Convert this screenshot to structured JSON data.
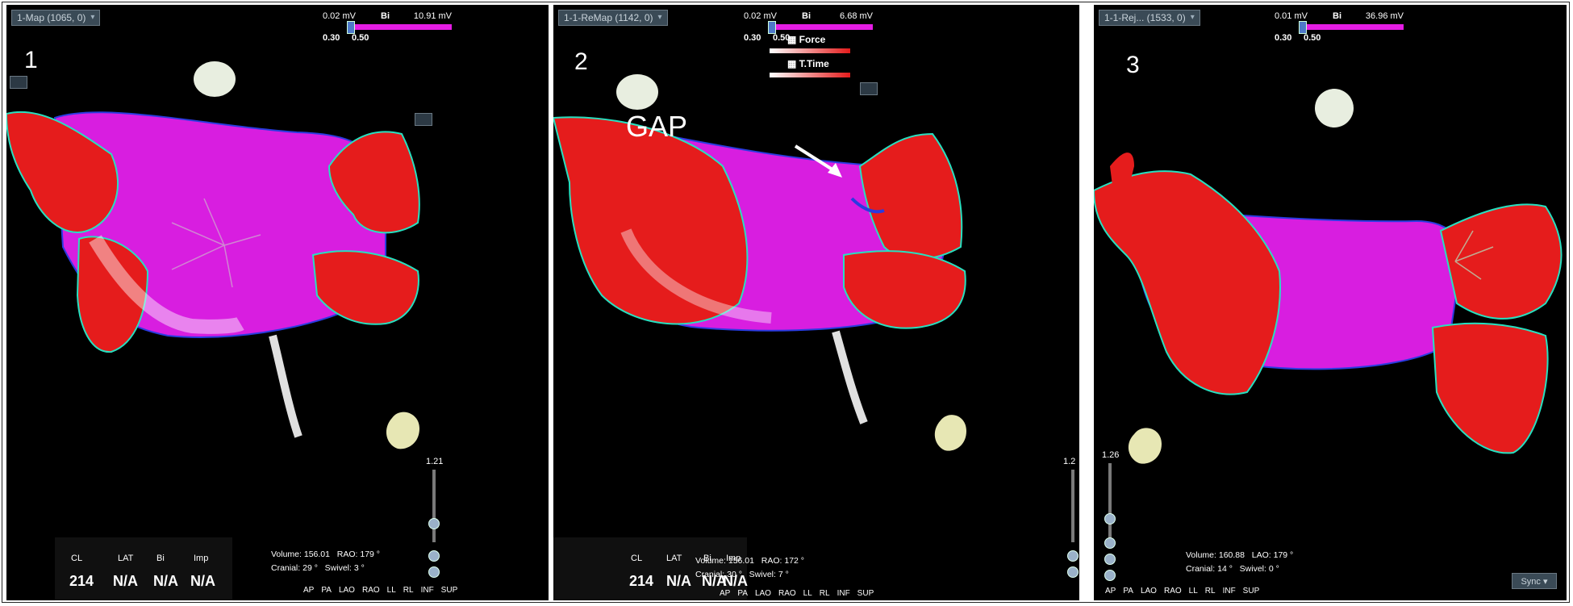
{
  "panels": [
    {
      "number": "1",
      "title": "1-Map (1065, 0)",
      "scale": {
        "min": "0.02 mV",
        "mode": "Bi",
        "max": "10.91 mV",
        "low": "0.30",
        "high": "0.50"
      },
      "info": {
        "headers": [
          "CL",
          "LAT",
          "Bi",
          "Imp"
        ],
        "values": [
          "214",
          "N/A",
          "N/A",
          "N/A"
        ]
      },
      "readout": {
        "volume_label": "Volume:",
        "volume": "156.01",
        "angle_label": "RAO:",
        "angle": "179 °",
        "cranial_label": "Cranial:",
        "cranial": "29 °",
        "swivel_label": "Swivel:",
        "swivel": "3 °"
      },
      "views": [
        "AP",
        "PA",
        "LAO",
        "RAO",
        "LL",
        "RL",
        "INF",
        "SUP"
      ],
      "zoom": "1.21"
    },
    {
      "number": "2",
      "title": "1-1-ReMap (1142, 0)",
      "scale": {
        "min": "0.02 mV",
        "mode": "Bi",
        "max": "6.68 mV",
        "low": "0.30",
        "high": "0.50"
      },
      "legend": {
        "force": "Force",
        "ttime": "T.Time"
      },
      "annotation": "GAP",
      "info": {
        "headers": [
          "CL",
          "LAT",
          "Bi",
          "Imp"
        ],
        "values": [
          "214",
          "N/A",
          "N/A",
          "N/A"
        ]
      },
      "readout": {
        "volume_label": "Volume:",
        "volume": "156.01",
        "angle_label": "RAO:",
        "angle": "172 °",
        "cranial_label": "Cranial:",
        "cranial": "30 °",
        "swivel_label": "Swivel:",
        "swivel": "7 °"
      },
      "views": [
        "AP",
        "PA",
        "LAO",
        "RAO",
        "LL",
        "RL",
        "INF",
        "SUP"
      ],
      "zoom": "1.2"
    },
    {
      "number": "3",
      "title": "1-1-Rej... (1533, 0)",
      "scale": {
        "min": "0.01 mV",
        "mode": "Bi",
        "max": "36.96 mV",
        "low": "0.30",
        "high": "0.50"
      },
      "readout": {
        "volume_label": "Volume:",
        "volume": "160.88",
        "angle_label": "LAO:",
        "angle": "179 °",
        "cranial_label": "Cranial:",
        "cranial": "14 °",
        "swivel_label": "Swivel:",
        "swivel": "0 °"
      },
      "views": [
        "AP",
        "PA",
        "LAO",
        "RAO",
        "LL",
        "RL",
        "INF",
        "SUP"
      ],
      "zoom": "1.26",
      "sync": "Sync"
    }
  ],
  "colors": {
    "healthy": "#e51c1c",
    "scar": "#d81ee0",
    "border": "#2a3be0",
    "background": "#000000"
  }
}
